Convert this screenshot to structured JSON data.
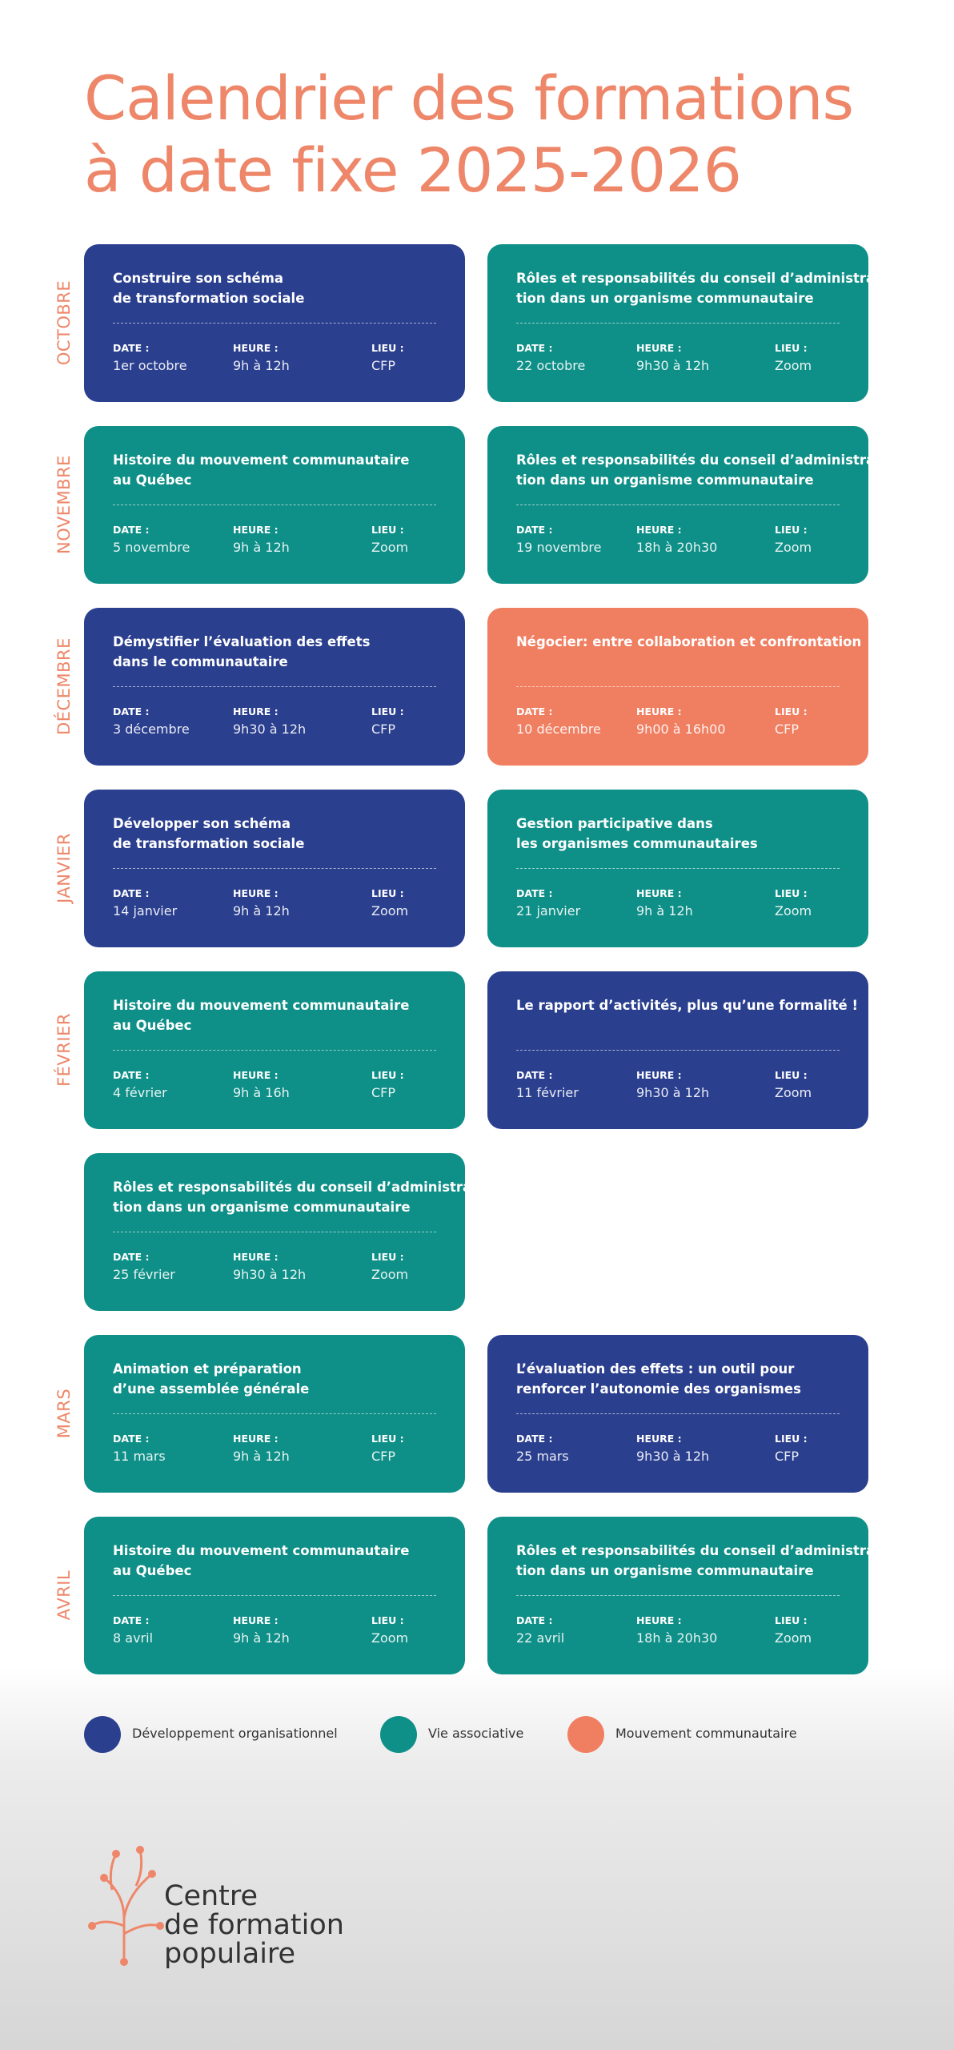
{
  "title": [
    "Calendrier des formations",
    "à date fixe 2025-2026"
  ],
  "labels": {
    "date": "DATE :",
    "heure": "HEURE :",
    "lieu": "LIEU :"
  },
  "months": [
    {
      "name": "OCTOBRE",
      "cards": [
        {
          "title": [
            "Construire son schéma",
            "de transformation sociale"
          ],
          "date": "1er octobre",
          "heure": "9h à 12h",
          "lieu": "CFP",
          "color": "#2b3f8f"
        },
        {
          "title": [
            "Rôles et responsabilités du conseil d’administra-",
            "tion dans un organisme communautaire"
          ],
          "date": "22 octobre",
          "heure": "9h30 à 12h",
          "lieu": "Zoom",
          "color": "#0e8f87"
        }
      ]
    },
    {
      "name": "NOVEMBRE",
      "cards": [
        {
          "title": [
            "Histoire du mouvement communautaire",
            "au Québec"
          ],
          "date": "5 novembre",
          "heure": "9h à 12h",
          "lieu": "Zoom",
          "color": "#0e8f87"
        },
        {
          "title": [
            "Rôles et responsabilités du conseil d’administra-",
            "tion dans un organisme communautaire"
          ],
          "date": "19 novembre",
          "heure": "18h à 20h30",
          "lieu": "Zoom",
          "color": "#0e8f87"
        }
      ]
    },
    {
      "name": "DÉCEMBRE",
      "cards": [
        {
          "title": [
            "Démystifier l’évaluation des effets",
            "dans le communautaire"
          ],
          "date": "3 décembre",
          "heure": "9h30 à 12h",
          "lieu": "CFP",
          "color": "#2b3f8f"
        },
        {
          "title": [
            "Négocier: entre collaboration et confrontation"
          ],
          "date": "10 décembre",
          "heure": "9h00 à 16h00",
          "lieu": "CFP",
          "color": "#f07f62"
        }
      ]
    },
    {
      "name": "JANVIER",
      "cards": [
        {
          "title": [
            "Développer son schéma",
            "de transformation sociale"
          ],
          "date": "14 janvier",
          "heure": "9h à 12h",
          "lieu": "Zoom",
          "color": "#2b3f8f"
        },
        {
          "title": [
            "Gestion participative dans",
            "les organismes communautaires"
          ],
          "date": "21 janvier",
          "heure": "9h à 12h",
          "lieu": "Zoom",
          "color": "#0e8f87"
        }
      ]
    },
    {
      "name": "FÉVRIER",
      "cards": [
        {
          "title": [
            "Histoire du mouvement communautaire",
            "au Québec"
          ],
          "date": "4 février",
          "heure": "9h à 16h",
          "lieu": "CFP",
          "color": "#0e8f87"
        },
        {
          "title": [
            "Le rapport d’activités, plus qu’une formalité !"
          ],
          "date": "11 février",
          "heure": "9h30 à 12h",
          "lieu": "Zoom",
          "color": "#2b3f8f"
        },
        {
          "title": [
            "Rôles et responsabilités du conseil d’administra-",
            "tion dans un organisme communautaire"
          ],
          "date": "25 février",
          "heure": "9h30 à 12h",
          "lieu": "Zoom",
          "color": "#0e8f87"
        }
      ]
    },
    {
      "name": "MARS",
      "cards": [
        {
          "title": [
            "Animation et préparation",
            "d’une assemblée générale"
          ],
          "date": "11 mars",
          "heure": "9h à 12h",
          "lieu": "CFP",
          "color": "#0e8f87"
        },
        {
          "title": [
            "L’évaluation des effets : un outil pour",
            "renforcer l’autonomie des organismes"
          ],
          "date": "25 mars",
          "heure": "9h30 à 12h",
          "lieu": "CFP",
          "color": "#2b3f8f"
        }
      ]
    },
    {
      "name": "AVRIL",
      "cards": [
        {
          "title": [
            "Histoire du mouvement communautaire",
            "au Québec"
          ],
          "date": "8 avril",
          "heure": "9h à 12h",
          "lieu": "Zoom",
          "color": "#0e8f87"
        },
        {
          "title": [
            "Rôles et responsabilités du conseil d’administra-",
            "tion dans un organisme communautaire"
          ],
          "date": "22 avril",
          "heure": "18h à 20h30",
          "lieu": "Zoom",
          "color": "#0e8f87"
        }
      ]
    }
  ],
  "legend": [
    {
      "name": "Développement organisationnel",
      "color": "#2b3f8f"
    },
    {
      "name": "Vie associative",
      "color": "#0e8f87"
    },
    {
      "name": "Mouvement communautaire",
      "color": "#f07f62"
    }
  ],
  "logo": [
    "Centre",
    "de formation",
    "populaire"
  ]
}
